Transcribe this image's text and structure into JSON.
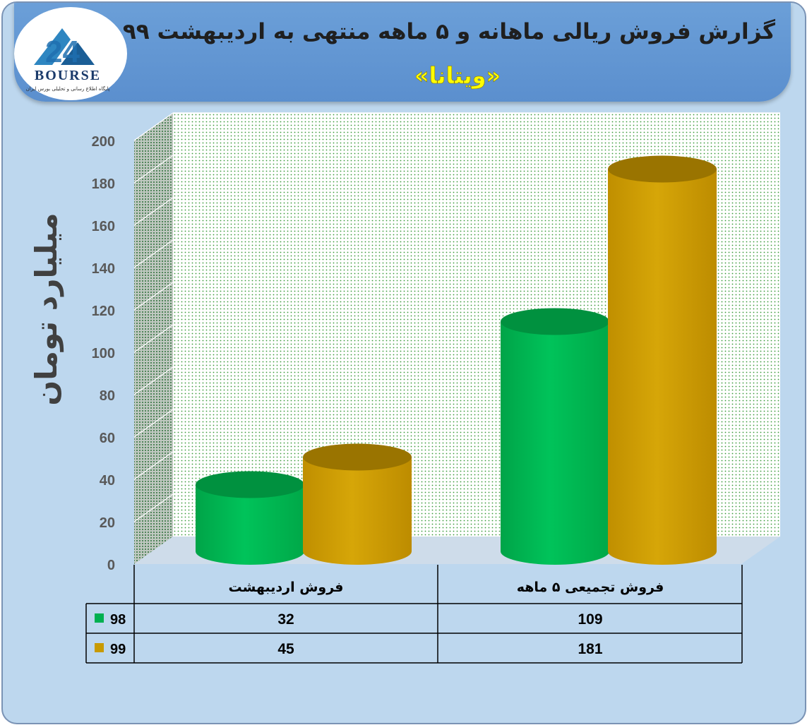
{
  "header": {
    "title": "گزارش فروش ریالی ماهانه و ۵ ماهه منتهی به اردیبهشت ۹۹",
    "subtitle": "«ویتانا»"
  },
  "logo": {
    "brand": "BOURSE",
    "tagline": "پایگاه اطلاع رسانی و تحلیلی بورس ایران"
  },
  "colors": {
    "series_98": "#00b050",
    "series_99": "#c89a00",
    "background": "#bdd7ee",
    "header": "#5b9bd5",
    "title_text": "#1f1f1f",
    "subtitle_text": "#ffff00"
  },
  "chart_data": {
    "type": "bar",
    "style": "3d-cylinder",
    "categories": [
      "فروش اردیبهشت",
      "فروش تجمیعی ۵ ماهه"
    ],
    "series": [
      {
        "name": "98",
        "values": [
          32,
          109
        ],
        "color": "#00b050"
      },
      {
        "name": "99",
        "values": [
          45,
          181
        ],
        "color": "#c89a00"
      }
    ],
    "ylabel": "میلیارد تومان",
    "ylim": [
      0,
      200
    ],
    "yticks": [
      "0",
      "20",
      "40",
      "60",
      "80",
      "100",
      "120",
      "140",
      "160",
      "180",
      "200"
    ],
    "grid": true,
    "legend": "data-table"
  },
  "table": {
    "rows": [
      {
        "series": "98",
        "values": [
          "32",
          "109"
        ]
      },
      {
        "series": "99",
        "values": [
          "45",
          "181"
        ]
      }
    ]
  }
}
